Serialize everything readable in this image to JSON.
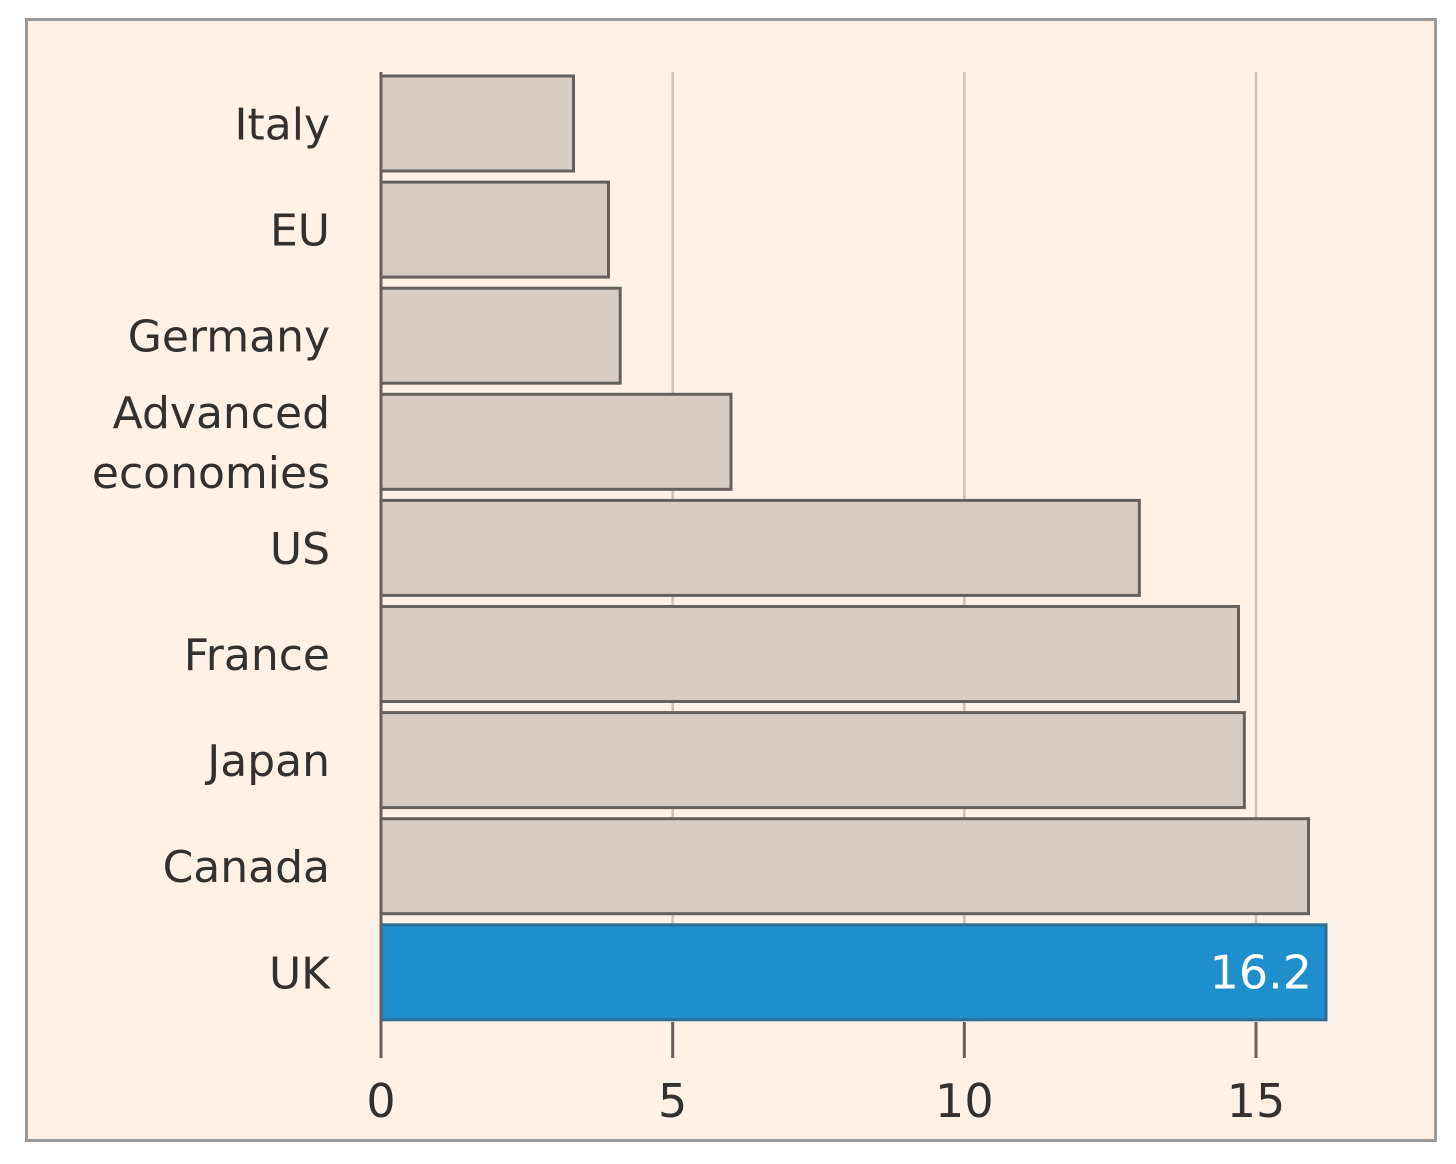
{
  "chart_data": {
    "type": "bar",
    "orientation": "horizontal",
    "categories": [
      "Italy",
      "EU",
      "Germany",
      "Advanced economies",
      "US",
      "France",
      "Japan",
      "Canada",
      "UK"
    ],
    "category_lines": [
      [
        "Italy"
      ],
      [
        "EU"
      ],
      [
        "Germany"
      ],
      [
        "Advanced",
        "economies"
      ],
      [
        "US"
      ],
      [
        "France"
      ],
      [
        "Japan"
      ],
      [
        "Canada"
      ],
      [
        "UK"
      ]
    ],
    "values": [
      3.3,
      3.9,
      4.1,
      6.0,
      13.0,
      14.7,
      14.8,
      15.9,
      16.2
    ],
    "highlight_index": 8,
    "data_labels": [
      "",
      "",
      "",
      "",
      "",
      "",
      "",
      "",
      "16.2"
    ],
    "xlim": [
      0,
      16.5
    ],
    "xticks": [
      0,
      5,
      10,
      15
    ],
    "xtick_labels": [
      "0",
      "5",
      "10",
      "15"
    ],
    "grid": "vertical",
    "title": "",
    "xlabel": "",
    "ylabel": "",
    "colors": {
      "background": "#fff1e5",
      "bar": "#d9ccc3",
      "bar_outline": "#66605c",
      "highlight": "#1f8ecd",
      "grid": "#ccc1b7",
      "text": "#33302e",
      "highlight_text": "#ffffff"
    }
  }
}
